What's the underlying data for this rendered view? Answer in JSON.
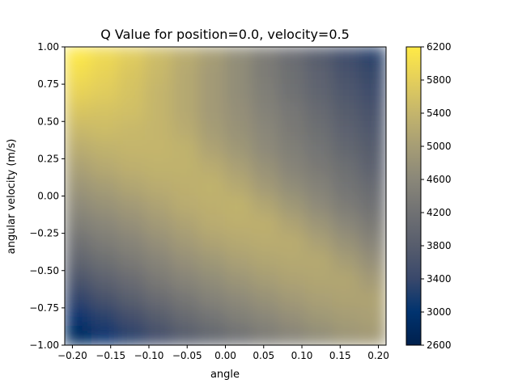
{
  "chart_data": {
    "type": "heatmap",
    "title": "Q Value for position=0.0, velocity=0.5",
    "xlabel": "angle",
    "ylabel": "angular velocity (m/s)",
    "xlim": [
      -0.21,
      0.21
    ],
    "ylim": [
      -1.0,
      1.0
    ],
    "x_ticks": [
      -0.2,
      -0.15,
      -0.1,
      -0.05,
      0.0,
      0.05,
      0.1,
      0.15,
      0.2
    ],
    "x_tick_labels": [
      "−0.20",
      "−0.15",
      "−0.10",
      "−0.05",
      "0.00",
      "0.05",
      "0.10",
      "0.15",
      "0.20"
    ],
    "y_ticks": [
      1.0,
      0.75,
      0.5,
      0.25,
      0.0,
      -0.25,
      -0.5,
      -0.75,
      -1.0
    ],
    "y_tick_labels": [
      "1.00",
      "0.75",
      "0.50",
      "0.25",
      "0.00",
      "−0.25",
      "−0.50",
      "−0.75",
      "−1.00"
    ],
    "colormap": "cividis",
    "colormap_stops": [
      "#00204d",
      "#00336f",
      "#39486b",
      "#575d6d",
      "#707173",
      "#8a8779",
      "#a69d75",
      "#c4b56c",
      "#e4cf5b",
      "#ffea46"
    ],
    "colorbar": {
      "vmin": 2600,
      "vmax": 6200,
      "ticks": [
        6200,
        5800,
        5400,
        5000,
        4600,
        4200,
        3800,
        3400,
        3000,
        2600
      ],
      "tick_labels": [
        "6200",
        "5800",
        "5400",
        "5000",
        "4600",
        "4200",
        "3800",
        "3400",
        "3000",
        "2600"
      ]
    },
    "grid": [
      [
        6150,
        5950,
        5750,
        5500,
        5250,
        5000,
        4700,
        4400,
        4100,
        3800,
        3500,
        3300
      ],
      [
        6000,
        5850,
        5650,
        5450,
        5200,
        4950,
        4700,
        4400,
        4150,
        3900,
        3600,
        3400
      ],
      [
        5850,
        5750,
        5600,
        5400,
        5200,
        4950,
        4700,
        4450,
        4200,
        3950,
        3700,
        3500
      ],
      [
        5650,
        5600,
        5550,
        5400,
        5200,
        4950,
        4750,
        4500,
        4300,
        4050,
        3800,
        3600
      ],
      [
        5450,
        5500,
        5450,
        5400,
        5250,
        5000,
        4800,
        4600,
        4350,
        4150,
        3900,
        3700
      ],
      [
        5250,
        5350,
        5400,
        5400,
        5350,
        5100,
        4900,
        4650,
        4450,
        4250,
        4000,
        3800
      ],
      [
        5050,
        5200,
        5300,
        5350,
        5350,
        5250,
        5050,
        4800,
        4550,
        4350,
        4150,
        3900
      ],
      [
        4850,
        5000,
        5150,
        5250,
        5300,
        5350,
        5200,
        4950,
        4700,
        4500,
        4250,
        4050
      ],
      [
        4650,
        4800,
        4950,
        5100,
        5250,
        5300,
        5350,
        5150,
        4900,
        4650,
        4400,
        4200
      ],
      [
        4450,
        4600,
        4750,
        4950,
        5100,
        5250,
        5300,
        5300,
        5100,
        4850,
        4600,
        4350
      ],
      [
        4200,
        4400,
        4550,
        4750,
        4950,
        5100,
        5200,
        5250,
        5250,
        5050,
        4800,
        4550
      ],
      [
        3950,
        4150,
        4350,
        4550,
        4750,
        4900,
        5050,
        5150,
        5200,
        5200,
        5000,
        4750
      ],
      [
        3650,
        3900,
        4100,
        4350,
        4550,
        4700,
        4850,
        5000,
        5100,
        5150,
        5150,
        4950
      ],
      [
        3350,
        3600,
        3850,
        4100,
        4300,
        4500,
        4650,
        4800,
        4950,
        5050,
        5100,
        5100
      ],
      [
        3050,
        3300,
        3550,
        3800,
        4050,
        4250,
        4450,
        4600,
        4750,
        4900,
        5000,
        5050
      ],
      [
        2800,
        3050,
        3300,
        3550,
        3800,
        4000,
        4200,
        4400,
        4550,
        4700,
        4850,
        4950
      ]
    ]
  }
}
